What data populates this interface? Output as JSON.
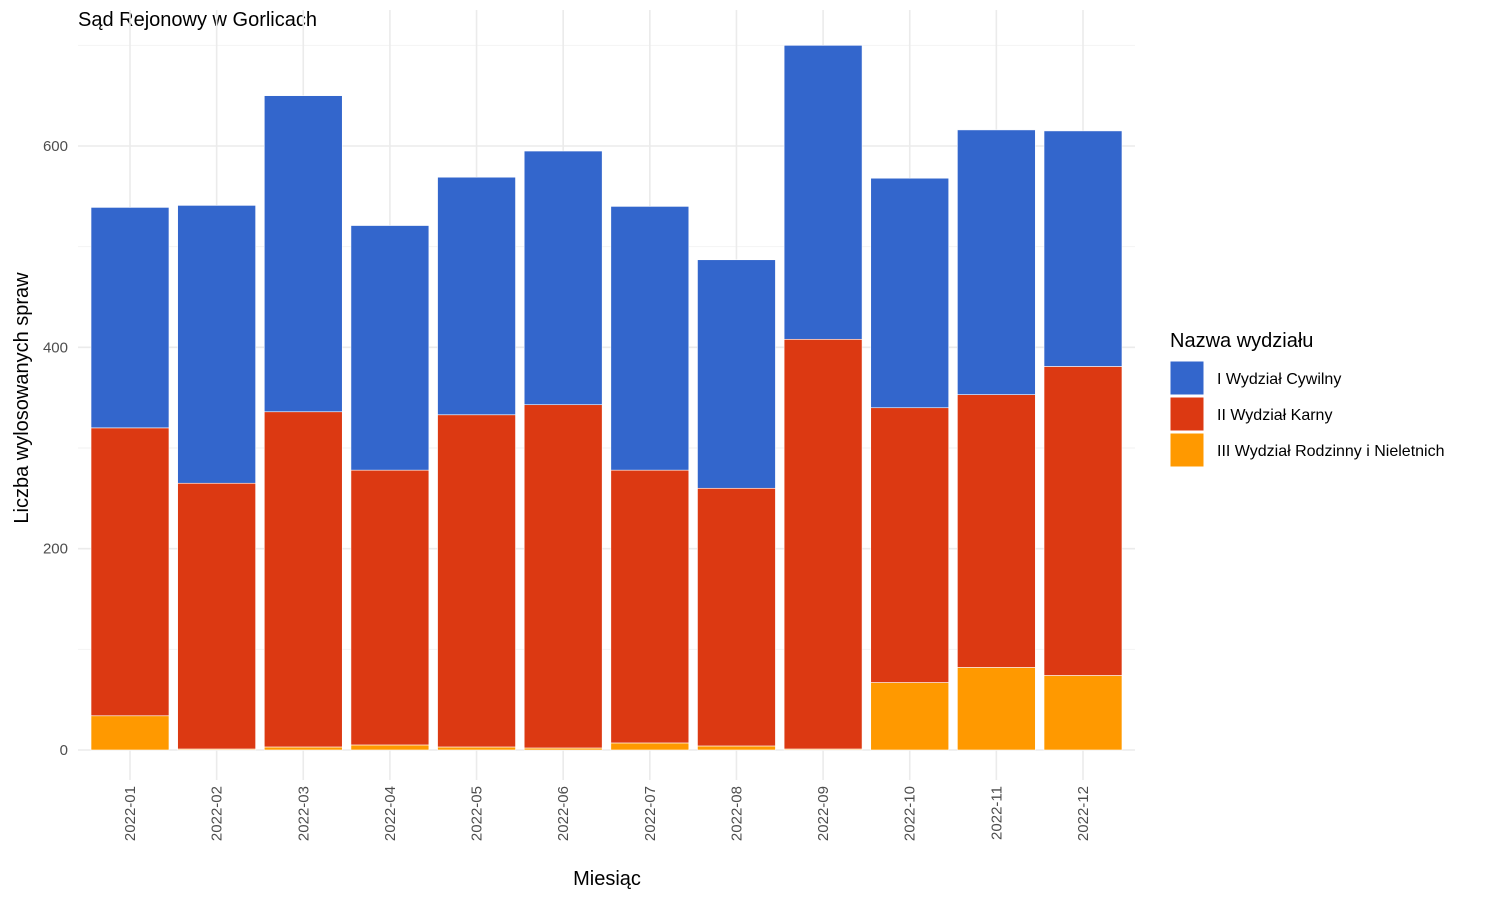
{
  "chart_data": {
    "type": "bar",
    "stacked": true,
    "title": "Sąd Rejonowy w Gorlicach",
    "xlabel": "Miesiąc",
    "ylabel": "Liczba wylosowanych spraw",
    "categories": [
      "2022-01",
      "2022-02",
      "2022-03",
      "2022-04",
      "2022-05",
      "2022-06",
      "2022-07",
      "2022-08",
      "2022-09",
      "2022-10",
      "2022-11",
      "2022-12"
    ],
    "ylim": [
      0,
      700
    ],
    "yticks": [
      0,
      200,
      400,
      600
    ],
    "grid": true,
    "legend": {
      "title": "Nazwa wydziału",
      "position": "right"
    },
    "series": [
      {
        "name": "III Wydział Rodzinny i Nieletnich",
        "color": "#FF9900",
        "values": [
          34,
          1,
          3,
          5,
          3,
          2,
          7,
          4,
          1,
          67,
          82,
          74
        ]
      },
      {
        "name": "II Wydział Karny",
        "color": "#DC3912",
        "values": [
          286,
          264,
          333,
          273,
          330,
          341,
          271,
          256,
          407,
          273,
          271,
          307
        ]
      },
      {
        "name": "I Wydział Cywilny",
        "color": "#3366CC",
        "values": [
          219,
          276,
          314,
          243,
          236,
          252,
          262,
          227,
          292,
          228,
          263,
          234
        ]
      }
    ]
  }
}
